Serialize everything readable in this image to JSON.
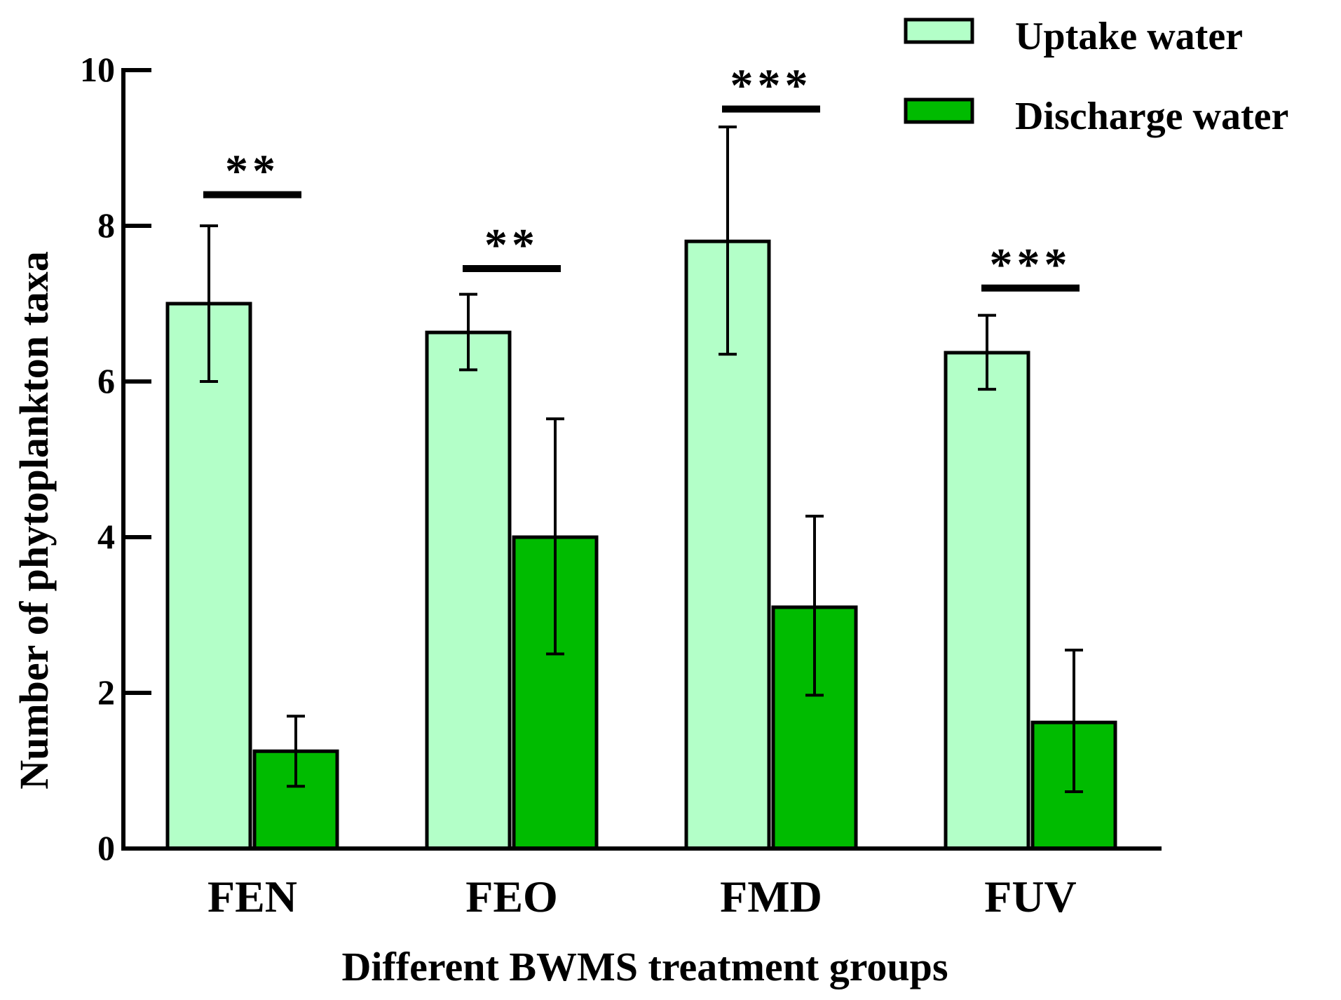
{
  "chart_data": {
    "type": "bar",
    "title": "",
    "xlabel": "Different BWMS treatment groups",
    "ylabel": "Number of phytoplankton taxa",
    "ylim": [
      0,
      10
    ],
    "yticks": [
      0,
      2,
      4,
      6,
      8,
      10
    ],
    "ytick_labels": [
      "0",
      "2",
      "4",
      "6",
      "8",
      "10"
    ],
    "grid": false,
    "legend_position": "top-right",
    "categories": [
      "FEN",
      "FEO",
      "FMD",
      "FUV"
    ],
    "series": [
      {
        "name": "Uptake water",
        "color": "#b3ffc8",
        "values": [
          7.0,
          6.63,
          7.8,
          6.37
        ],
        "err_low": [
          6.0,
          6.15,
          6.35,
          5.9
        ],
        "err_high": [
          8.0,
          7.12,
          9.27,
          6.85
        ]
      },
      {
        "name": "Discharge water",
        "color": "#00bb00",
        "values": [
          1.25,
          4.0,
          3.1,
          1.62
        ],
        "err_low": [
          0.8,
          2.5,
          1.97,
          0.73
        ],
        "err_high": [
          1.7,
          5.52,
          4.27,
          2.55
        ]
      }
    ],
    "significance": [
      {
        "category": "FEN",
        "label": "**",
        "level": 8.4
      },
      {
        "category": "FEO",
        "label": "**",
        "level": 7.45
      },
      {
        "category": "FMD",
        "label": "***",
        "level": 9.5
      },
      {
        "category": "FUV",
        "label": "***",
        "level": 7.2
      }
    ]
  }
}
